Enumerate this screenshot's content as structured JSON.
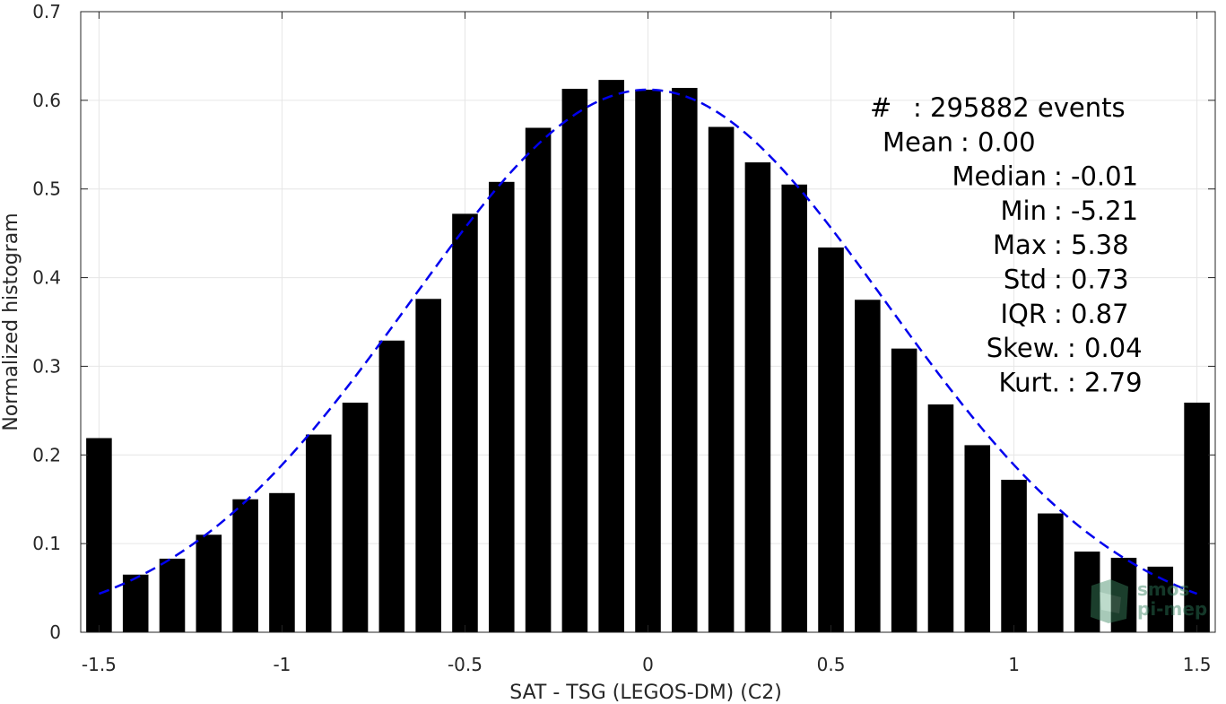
{
  "chart_data": {
    "type": "bar",
    "xlabel": "SAT - TSG (LEGOS-DM) (C2)",
    "ylabel": "Normalized histogram",
    "xlim": [
      -1.55,
      1.55
    ],
    "ylim": [
      0,
      0.7
    ],
    "grid": true,
    "xticks": [
      -1.5,
      -1,
      -0.5,
      0,
      0.5,
      1,
      1.5
    ],
    "xtick_labels": [
      "-1.5",
      "-1",
      "-0.5",
      "0",
      "0.5",
      "1",
      "1.5"
    ],
    "yticks": [
      0,
      0.1,
      0.2,
      0.3,
      0.4,
      0.5,
      0.6,
      0.7
    ],
    "ytick_labels": [
      "0",
      "0.1",
      "0.2",
      "0.3",
      "0.4",
      "0.5",
      "0.6",
      "0.7"
    ],
    "bar_centers": [
      -1.5,
      -1.4,
      -1.3,
      -1.2,
      -1.1,
      -1.0,
      -0.9,
      -0.8,
      -0.7,
      -0.6,
      -0.5,
      -0.4,
      -0.3,
      -0.2,
      -0.1,
      0.0,
      0.1,
      0.2,
      0.3,
      0.4,
      0.5,
      0.6,
      0.7,
      0.8,
      0.9,
      1.0,
      1.1,
      1.2,
      1.3,
      1.4,
      1.5
    ],
    "bar_width": 0.07,
    "values": [
      0.219,
      0.065,
      0.083,
      0.11,
      0.15,
      0.157,
      0.223,
      0.259,
      0.329,
      0.376,
      0.472,
      0.508,
      0.569,
      0.613,
      0.623,
      0.612,
      0.614,
      0.57,
      0.53,
      0.505,
      0.434,
      0.375,
      0.32,
      0.257,
      0.211,
      0.172,
      0.134,
      0.091,
      0.084,
      0.074,
      0.259
    ],
    "bar_color": "#000000",
    "fit": {
      "type": "gaussian",
      "style": "dashed",
      "color": "#0000ee",
      "mean": 0.0,
      "std": 0.652,
      "peak": 0.612,
      "x_range": [
        -1.5,
        1.5
      ]
    },
    "stats": [
      {
        "label": "#",
        "value": ": 295882 events"
      },
      {
        "label": "Mean",
        "value": ": 0.00"
      },
      {
        "label": "Median",
        "value": ": -0.01"
      },
      {
        "label": "Min",
        "value": ": -5.21"
      },
      {
        "label": "Max",
        "value": ": 5.38"
      },
      {
        "label": "Std",
        "value": ": 0.73"
      },
      {
        "label": "IQR",
        "value": ": 0.87"
      },
      {
        "label": "Skew.",
        "value": ": 0.04"
      },
      {
        "label": "Kurt.",
        "value": ": 2.79"
      }
    ]
  },
  "logo": {
    "line1": "smos",
    "line2": "pi-mep"
  }
}
